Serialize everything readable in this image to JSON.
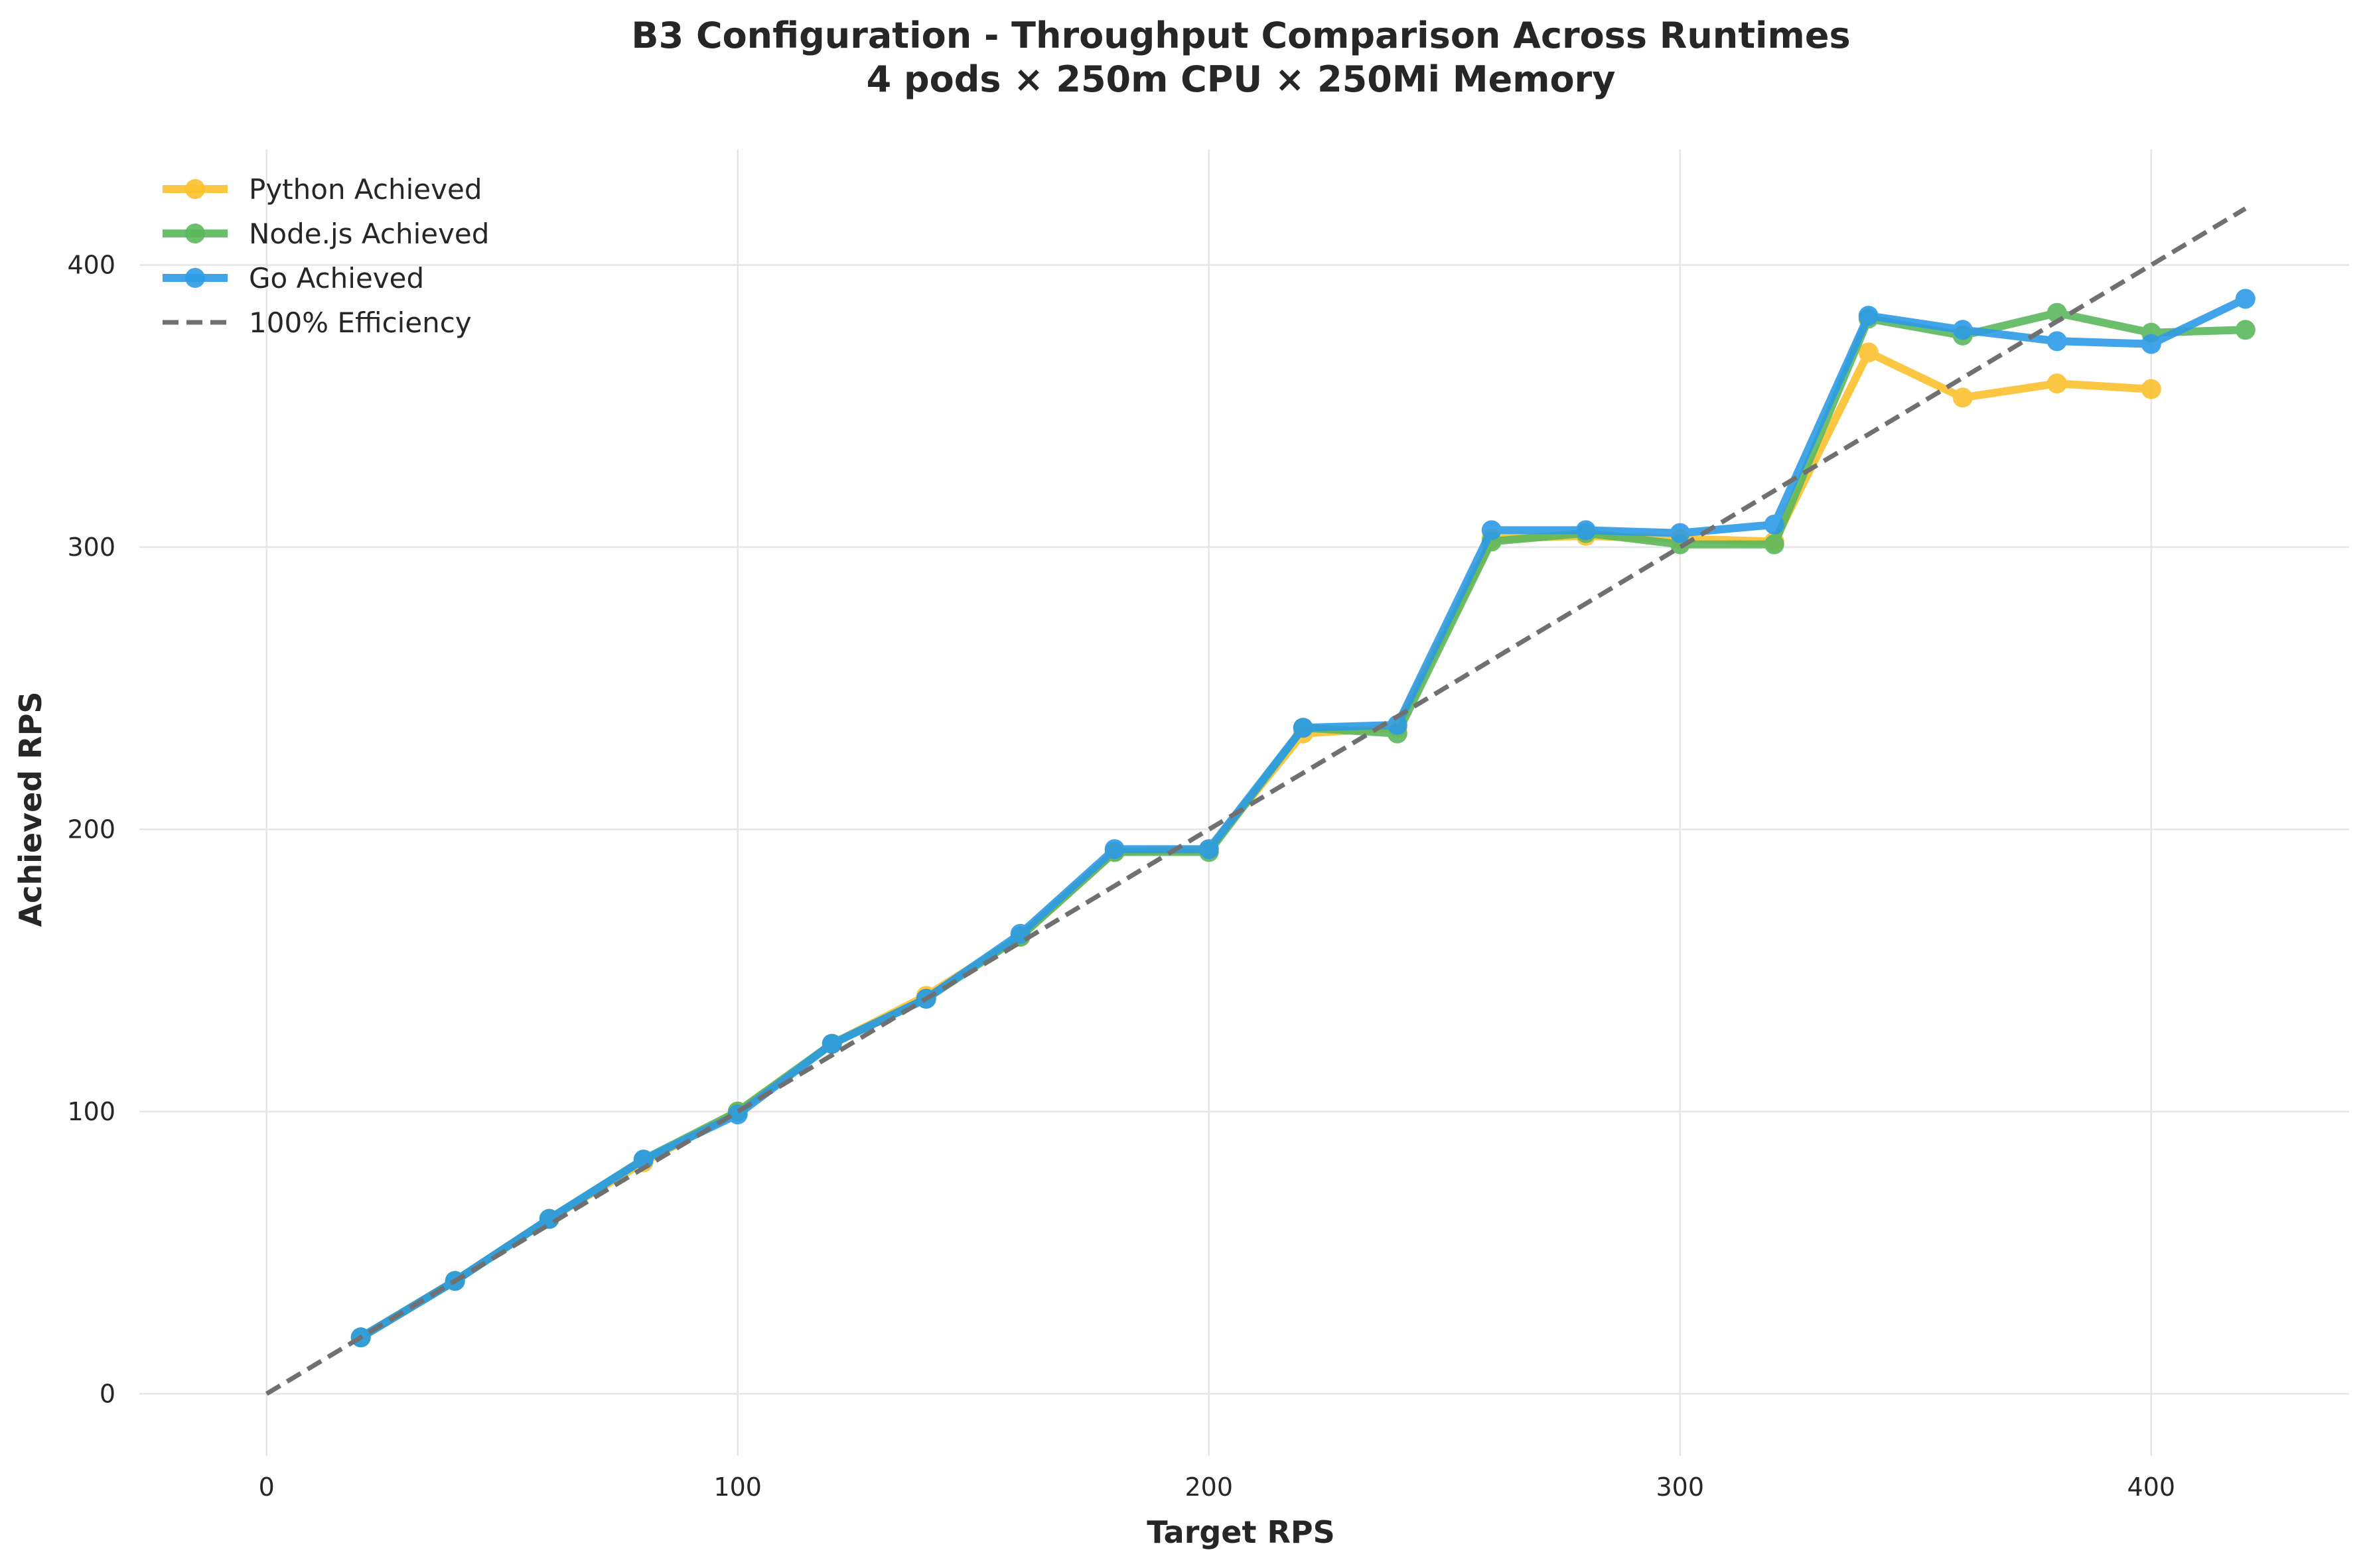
{
  "chart_data": {
    "type": "line",
    "title": [
      "B3 Configuration - Throughput Comparison Across Runtimes",
      "4 pods × 250m CPU × 250Mi Memory"
    ],
    "xlabel": "Target RPS",
    "ylabel": "Achieved RPS",
    "xlim": [
      -27,
      442
    ],
    "ylim": [
      -22,
      441
    ],
    "xticks": [
      0,
      100,
      200,
      300,
      400
    ],
    "yticks": [
      0,
      100,
      200,
      300,
      400
    ],
    "grid": true,
    "legend_position": "top-left",
    "series": [
      {
        "name": "Python Achieved",
        "color": "#fbc02d",
        "x": [
          20,
          40,
          60,
          80,
          100,
          120,
          140,
          160,
          180,
          200,
          220,
          240,
          260,
          280,
          300,
          320,
          340,
          360,
          380,
          400
        ],
        "y": [
          20,
          40,
          62,
          82,
          100,
          124,
          141,
          162,
          192,
          193,
          234,
          236,
          303,
          304,
          303,
          302,
          369,
          353,
          358,
          356
        ]
      },
      {
        "name": "Node.js Achieved",
        "color": "#5cb85c",
        "x": [
          20,
          40,
          60,
          80,
          100,
          120,
          140,
          160,
          180,
          200,
          220,
          240,
          260,
          280,
          300,
          320,
          340,
          360,
          380,
          400,
          420
        ],
        "y": [
          20,
          40,
          62,
          83,
          100,
          124,
          140,
          162,
          192,
          192,
          236,
          234,
          302,
          305,
          301,
          301,
          381,
          375,
          383,
          376,
          377
        ]
      },
      {
        "name": "Go Achieved",
        "color": "#2e9be6",
        "x": [
          20,
          40,
          60,
          80,
          100,
          120,
          140,
          160,
          180,
          200,
          220,
          240,
          260,
          280,
          300,
          320,
          340,
          360,
          380,
          400,
          420
        ],
        "y": [
          20,
          40,
          62,
          83,
          99,
          124,
          140,
          163,
          193,
          193,
          236,
          237,
          306,
          306,
          305,
          308,
          382,
          377,
          373,
          372,
          388
        ]
      },
      {
        "name": "100% Efficiency",
        "color": "#707070",
        "dashed": true,
        "x": [
          0,
          420
        ],
        "y": [
          0,
          420
        ]
      }
    ]
  }
}
